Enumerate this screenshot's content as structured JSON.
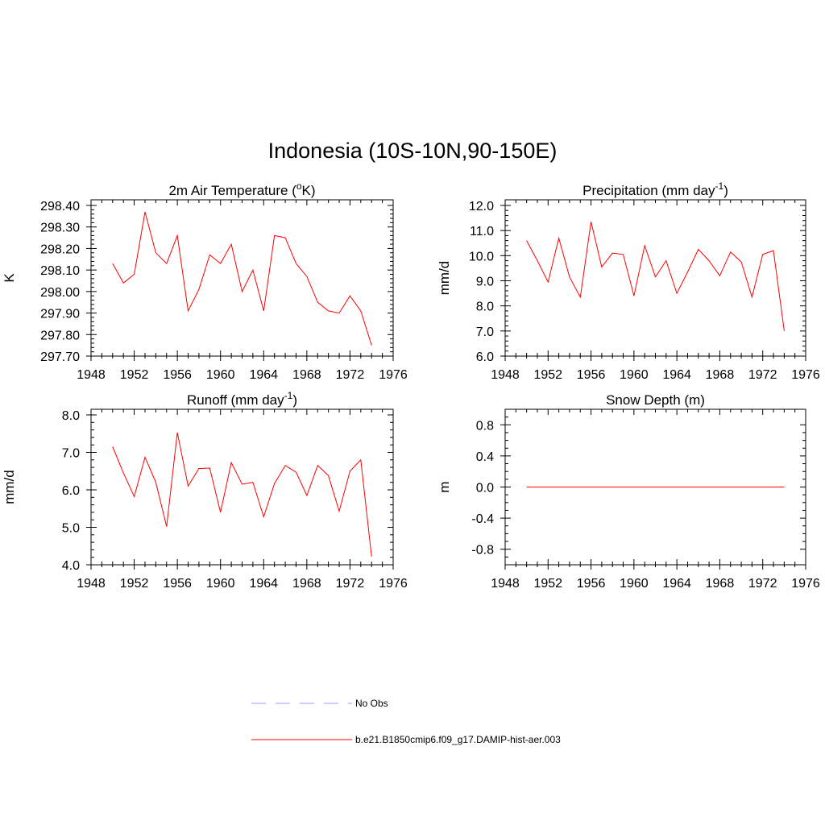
{
  "title": "Indonesia (10S-10N,90-150E)",
  "colors": {
    "model": "#ff0000",
    "obs": "#9999ff",
    "axis": "#000000"
  },
  "legend": [
    {
      "label": "No Obs",
      "style": "dashed",
      "color": "#9999ff"
    },
    {
      "label": "b.e21.B1850cmip6.f09_g17.DAMIP-hist-aer.003",
      "style": "solid",
      "color": "#ff0000"
    }
  ],
  "chart_data": [
    {
      "type": "line",
      "title": "2m Air Temperature (",
      "title_sup": "o",
      "title_after": "K)",
      "ylabel": "K",
      "xlim": [
        1948,
        1976
      ],
      "ylim": [
        297.7,
        298.4
      ],
      "xticks": [
        1948,
        1952,
        1956,
        1960,
        1964,
        1968,
        1972,
        1976
      ],
      "yticks": [
        "297.70",
        "297.80",
        "297.90",
        "298.00",
        "298.10",
        "298.20",
        "298.30",
        "298.40"
      ],
      "yminor": 5,
      "x": [
        1950,
        1951,
        1952,
        1953,
        1954,
        1955,
        1956,
        1957,
        1958,
        1959,
        1960,
        1961,
        1962,
        1963,
        1964,
        1965,
        1966,
        1967,
        1968,
        1969,
        1970,
        1971,
        1972,
        1973,
        1974
      ],
      "series": [
        {
          "values": [
            298.13,
            298.04,
            298.08,
            298.37,
            298.18,
            298.13,
            298.26,
            297.91,
            298.01,
            298.17,
            298.13,
            298.22,
            298.0,
            298.1,
            297.91,
            298.26,
            298.25,
            298.13,
            298.07,
            297.95,
            297.91,
            297.9,
            297.98,
            297.91,
            297.75
          ]
        }
      ]
    },
    {
      "type": "line",
      "title": "Precipitation (mm day",
      "title_sup": "-1",
      "title_after": ")",
      "ylabel": "mm/d",
      "xlim": [
        1948,
        1976
      ],
      "ylim": [
        6.0,
        12.0
      ],
      "xticks": [
        1948,
        1952,
        1956,
        1960,
        1964,
        1968,
        1972,
        1976
      ],
      "yticks": [
        "6.0",
        "7.0",
        "8.0",
        "9.0",
        "10.0",
        "11.0",
        "12.0"
      ],
      "yminor": 5,
      "x": [
        1950,
        1951,
        1952,
        1953,
        1954,
        1955,
        1956,
        1957,
        1958,
        1959,
        1960,
        1961,
        1962,
        1963,
        1964,
        1965,
        1966,
        1967,
        1968,
        1969,
        1970,
        1971,
        1972,
        1973,
        1974
      ],
      "series": [
        {
          "values": [
            10.6,
            9.8,
            8.95,
            10.7,
            9.15,
            8.35,
            11.35,
            9.55,
            10.1,
            10.05,
            8.4,
            10.4,
            9.15,
            9.8,
            8.5,
            9.35,
            10.25,
            9.8,
            9.2,
            10.15,
            9.75,
            8.35,
            10.05,
            10.2,
            7.0
          ]
        }
      ]
    },
    {
      "type": "line",
      "title": "Runoff (mm day",
      "title_sup": "-1",
      "title_after": ")",
      "ylabel": "mm/d",
      "xlim": [
        1948,
        1976
      ],
      "ylim": [
        4.0,
        8.0
      ],
      "xticks": [
        1948,
        1952,
        1956,
        1960,
        1964,
        1968,
        1972,
        1976
      ],
      "yticks": [
        "4.0",
        "5.0",
        "6.0",
        "7.0",
        "8.0"
      ],
      "yminor": 5,
      "x": [
        1950,
        1951,
        1952,
        1953,
        1954,
        1955,
        1956,
        1957,
        1958,
        1959,
        1960,
        1961,
        1962,
        1963,
        1964,
        1965,
        1966,
        1967,
        1968,
        1969,
        1970,
        1971,
        1972,
        1973,
        1974
      ],
      "series": [
        {
          "values": [
            7.15,
            6.45,
            5.82,
            6.87,
            6.2,
            5.02,
            7.53,
            6.1,
            6.57,
            6.58,
            5.4,
            6.73,
            6.15,
            6.2,
            5.28,
            6.17,
            6.65,
            6.47,
            5.85,
            6.65,
            6.38,
            5.43,
            6.5,
            6.8,
            4.22
          ]
        }
      ]
    },
    {
      "type": "line",
      "title": "Snow Depth (m)",
      "title_sup": "",
      "title_after": "",
      "ylabel": "m",
      "xlim": [
        1948,
        1976
      ],
      "ylim": [
        -1.0,
        1.0
      ],
      "xticks": [
        1948,
        1952,
        1956,
        1960,
        1964,
        1968,
        1972,
        1976
      ],
      "yticks": [
        "-0.8",
        "-0.4",
        "0.0",
        "0.4",
        "0.8"
      ],
      "ytick_values": [
        -0.8,
        -0.4,
        0.0,
        0.4,
        0.8
      ],
      "yminor": 4,
      "x": [
        1950,
        1951,
        1952,
        1953,
        1954,
        1955,
        1956,
        1957,
        1958,
        1959,
        1960,
        1961,
        1962,
        1963,
        1964,
        1965,
        1966,
        1967,
        1968,
        1969,
        1970,
        1971,
        1972,
        1973,
        1974
      ],
      "series": [
        {
          "values": [
            0,
            0,
            0,
            0,
            0,
            0,
            0,
            0,
            0,
            0,
            0,
            0,
            0,
            0,
            0,
            0,
            0,
            0,
            0,
            0,
            0,
            0,
            0,
            0,
            0
          ]
        }
      ]
    }
  ]
}
